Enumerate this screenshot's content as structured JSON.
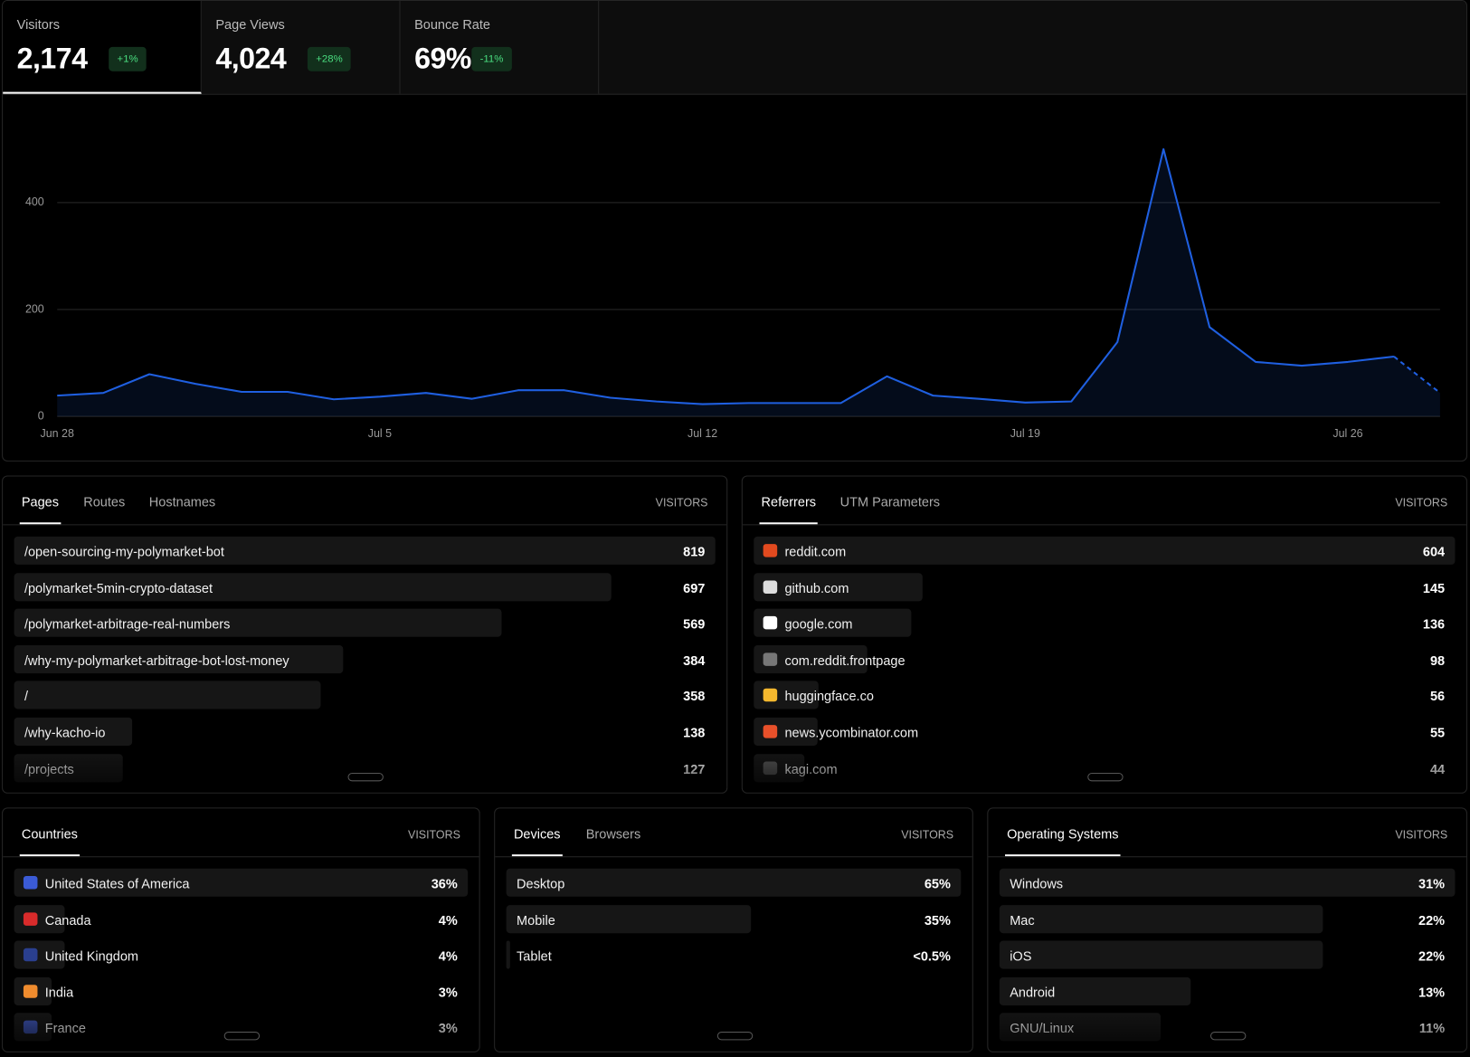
{
  "metrics": [
    {
      "label": "Visitors",
      "value": "2,174",
      "change": "+1%"
    },
    {
      "label": "Page Views",
      "value": "4,024",
      "change": "+28%"
    },
    {
      "label": "Bounce Rate",
      "value": "69%",
      "change": "-11%"
    }
  ],
  "chart_data": {
    "type": "line",
    "categories": [
      "Jun 28",
      null,
      null,
      null,
      null,
      null,
      null,
      "Jul 5",
      null,
      null,
      null,
      null,
      null,
      null,
      "Jul 12",
      null,
      null,
      null,
      null,
      null,
      null,
      "Jul 19",
      null,
      null,
      null,
      null,
      null,
      null,
      "Jul 26",
      null,
      null
    ],
    "series": [
      {
        "name": "Visitors",
        "color": "#1f5fe0",
        "values": [
          39,
          44,
          79,
          61,
          46,
          46,
          32,
          37,
          44,
          33,
          49,
          49,
          35,
          28,
          23,
          25,
          25,
          25,
          75,
          39,
          33,
          26,
          28,
          139,
          500,
          167,
          102,
          95,
          102,
          112,
          44
        ]
      }
    ],
    "ylim": [
      0,
      540
    ],
    "yticks": [
      0,
      200,
      400
    ],
    "grid": true
  },
  "pages_panel": {
    "tabs": [
      "Pages",
      "Routes",
      "Hostnames"
    ],
    "column": "VISITORS",
    "rows": [
      {
        "label": "/open-sourcing-my-polymarket-bot",
        "value": 819
      },
      {
        "label": "/polymarket-5min-crypto-dataset",
        "value": 697
      },
      {
        "label": "/polymarket-arbitrage-real-numbers",
        "value": 569
      },
      {
        "label": "/why-my-polymarket-arbitrage-bot-lost-money",
        "value": 384
      },
      {
        "label": "/",
        "value": 358
      },
      {
        "label": "/why-kacho-io",
        "value": 138
      },
      {
        "label": "/projects",
        "value": 127
      }
    ]
  },
  "referrers_panel": {
    "tabs": [
      "Referrers",
      "UTM Parameters"
    ],
    "column": "VISITORS",
    "rows": [
      {
        "label": "reddit.com",
        "value": 604
      },
      {
        "label": "github.com",
        "value": 145
      },
      {
        "label": "google.com",
        "value": 136
      },
      {
        "label": "com.reddit.frontpage",
        "value": 98
      },
      {
        "label": "huggingface.co",
        "value": 56
      },
      {
        "label": "news.ycombinator.com",
        "value": 55
      },
      {
        "label": "kagi.com",
        "value": 44
      }
    ]
  },
  "countries_panel": {
    "tabs": [
      "Countries"
    ],
    "column": "VISITORS",
    "rows": [
      {
        "label": "United States of America",
        "value": "36%"
      },
      {
        "label": "Canada",
        "value": "4%"
      },
      {
        "label": "United Kingdom",
        "value": "4%"
      },
      {
        "label": "India",
        "value": "3%"
      },
      {
        "label": "France",
        "value": "3%"
      }
    ]
  },
  "devices_panel": {
    "tabs": [
      "Devices",
      "Browsers"
    ],
    "column": "VISITORS",
    "rows": [
      {
        "label": "Desktop",
        "value": "65%"
      },
      {
        "label": "Mobile",
        "value": "35%"
      },
      {
        "label": "Tablet",
        "value": "<0.5%"
      }
    ]
  },
  "os_panel": {
    "tabs": [
      "Operating Systems"
    ],
    "column": "VISITORS",
    "rows": [
      {
        "label": "Windows",
        "value": "31%"
      },
      {
        "label": "Mac",
        "value": "22%"
      },
      {
        "label": "iOS",
        "value": "22%"
      },
      {
        "label": "Android",
        "value": "13%"
      },
      {
        "label": "GNU/Linux",
        "value": "11%"
      }
    ]
  }
}
